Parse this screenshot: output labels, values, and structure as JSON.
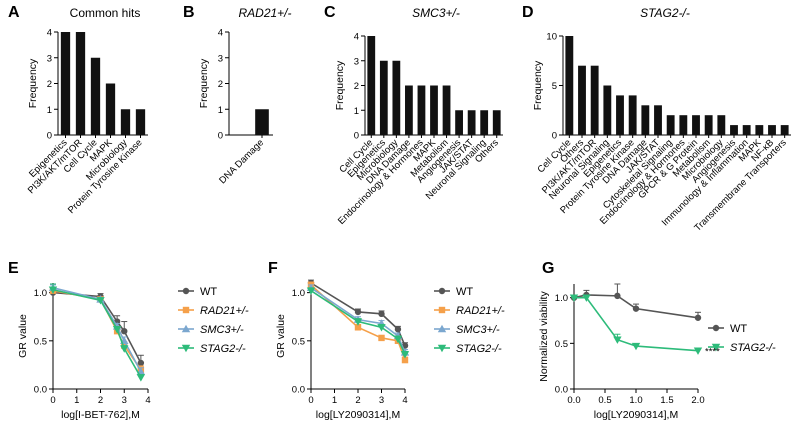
{
  "chart_data": [
    {
      "panel": "A",
      "type": "bar",
      "title": "Common hits",
      "title_italic": false,
      "xlabel": "",
      "ylabel": "Frequency",
      "ylim": [
        0,
        4
      ],
      "yticks": [
        0,
        1,
        2,
        3,
        4
      ],
      "categories": [
        "Epigenetics",
        "PI3K/AKT/mTOR",
        "Cell Cycle",
        "MAPK",
        "Microbiology",
        "Protein Tyrosine Kinase"
      ],
      "values": [
        4,
        4,
        3,
        2,
        1,
        1
      ]
    },
    {
      "panel": "B",
      "type": "bar",
      "title": "RAD21+/-",
      "title_italic": true,
      "xlabel": "",
      "ylabel": "Frequency",
      "ylim": [
        0,
        4
      ],
      "yticks": [
        0,
        1,
        2,
        3,
        4
      ],
      "categories": [
        "DNA Damage"
      ],
      "values": [
        1
      ]
    },
    {
      "panel": "C",
      "type": "bar",
      "title": "SMC3+/-",
      "title_italic": true,
      "xlabel": "",
      "ylabel": "Frequency",
      "ylim": [
        0,
        4
      ],
      "yticks": [
        0,
        1,
        2,
        3,
        4
      ],
      "categories": [
        "Cell Cycle",
        "Epigenetics",
        "Microbiology",
        "DNA Damage",
        "Endocrinology & Hormones",
        "MAPK",
        "Metabolism",
        "Angiogenesis",
        "JAK/STAT",
        "Neuronal Signaling",
        "Others"
      ],
      "values": [
        4,
        3,
        3,
        2,
        2,
        2,
        2,
        1,
        1,
        1,
        1
      ]
    },
    {
      "panel": "D",
      "type": "bar",
      "title": "STAG2-/-",
      "title_italic": true,
      "xlabel": "",
      "ylabel": "Frequency",
      "ylim": [
        0,
        10
      ],
      "yticks": [
        0,
        5,
        10
      ],
      "categories": [
        "Cell Cycle",
        "Others",
        "PI3K/AKT/mTOR",
        "Neuronal Signaling",
        "Epigenetics",
        "Protein Tyrosine Kinase",
        "DNA Damage",
        "JAK/STAT",
        "Cytoskeletal Signaling",
        "Endocrinology & Hormones",
        "GPCR & G Protein",
        "Metabolism",
        "Microbiology",
        "Angiogenesis",
        "Immunology & Inflammation",
        "MAPK",
        "NF-κB",
        "Transmembrane Transporters"
      ],
      "values": [
        10,
        7,
        7,
        5,
        4,
        4,
        3,
        3,
        2,
        2,
        2,
        2,
        2,
        1,
        1,
        1,
        1,
        1
      ]
    },
    {
      "panel": "E",
      "type": "line",
      "xlabel": "log[I-BET-762],M",
      "ylabel": "GR value",
      "xlim": [
        0,
        4
      ],
      "xticks": [
        0,
        1,
        2,
        3,
        4
      ],
      "ylim": [
        0,
        1.1
      ],
      "yticks": [
        0.0,
        0.5,
        1.0
      ],
      "x": [
        0,
        2,
        2.7,
        3,
        3.7
      ],
      "series": [
        {
          "name": "WT",
          "color": "#555555",
          "marker": "circle",
          "values": [
            1.0,
            0.96,
            0.7,
            0.6,
            0.27
          ],
          "err": [
            0.02,
            0.03,
            0.06,
            0.1,
            0.08
          ]
        },
        {
          "name": "RAD21+/-",
          "color": "#f5a04a",
          "marker": "square",
          "values": [
            1.02,
            0.93,
            0.6,
            0.45,
            0.2
          ],
          "err": [
            0.03,
            0.02,
            0.03,
            0.04,
            0.04
          ]
        },
        {
          "name": "SMC3+/-",
          "color": "#7ba7cf",
          "marker": "triangle-up",
          "values": [
            1.05,
            0.93,
            0.65,
            0.5,
            0.18
          ],
          "err": [
            0.03,
            0.02,
            0.03,
            0.04,
            0.04
          ]
        },
        {
          "name": "STAG2-/-",
          "color": "#2dbb7a",
          "marker": "triangle-down",
          "values": [
            1.03,
            0.92,
            0.62,
            0.42,
            0.12
          ],
          "err": [
            0.06,
            0.02,
            0.02,
            0.03,
            0.03
          ]
        }
      ]
    },
    {
      "panel": "F",
      "type": "line",
      "xlabel": "log[LY2090314],M",
      "ylabel": "GR value",
      "xlim": [
        0,
        4
      ],
      "xticks": [
        0,
        1,
        2,
        3,
        4
      ],
      "ylim": [
        0,
        1.1
      ],
      "yticks": [
        0.0,
        0.5,
        1.0
      ],
      "x": [
        0,
        2,
        3,
        3.7,
        4
      ],
      "series": [
        {
          "name": "WT",
          "color": "#555555",
          "marker": "circle",
          "values": [
            1.1,
            0.8,
            0.78,
            0.62,
            0.45
          ],
          "err": [
            0.03,
            0.03,
            0.03,
            0.03,
            0.03
          ]
        },
        {
          "name": "RAD21+/-",
          "color": "#f5a04a",
          "marker": "square",
          "values": [
            1.08,
            0.64,
            0.53,
            0.5,
            0.3
          ],
          "err": [
            0.03,
            0.03,
            0.02,
            0.03,
            0.03
          ]
        },
        {
          "name": "SMC3+/-",
          "color": "#7ba7cf",
          "marker": "triangle-up",
          "values": [
            1.05,
            0.72,
            0.68,
            0.55,
            0.38
          ],
          "err": [
            0.03,
            0.03,
            0.03,
            0.03,
            0.03
          ]
        },
        {
          "name": "STAG2-/-",
          "color": "#2dbb7a",
          "marker": "triangle-down",
          "values": [
            1.02,
            0.7,
            0.64,
            0.52,
            0.36
          ],
          "err": [
            0.03,
            0.03,
            0.03,
            0.03,
            0.03
          ]
        }
      ]
    },
    {
      "panel": "G",
      "type": "line",
      "xlabel": "log[LY2090314],M",
      "ylabel": "Normalized viability",
      "xlim": [
        0,
        2.0
      ],
      "xticks": [
        0.0,
        0.5,
        1.0,
        1.5,
        2.0
      ],
      "ylim": [
        0,
        1.15
      ],
      "yticks": [
        0.0,
        0.5,
        1.0
      ],
      "x": [
        0,
        0.2,
        0.7,
        1.0,
        2.0
      ],
      "series": [
        {
          "name": "WT",
          "color": "#555555",
          "marker": "circle",
          "values": [
            1.0,
            1.03,
            1.02,
            0.88,
            0.78
          ],
          "err": [
            0.02,
            0.05,
            0.13,
            0.05,
            0.06
          ]
        },
        {
          "name": "STAG2-/-",
          "color": "#2dbb7a",
          "marker": "triangle-down",
          "values": [
            1.0,
            1.0,
            0.54,
            0.47,
            0.42
          ],
          "err": [
            0.02,
            0.02,
            0.06,
            0.02,
            0.02
          ]
        }
      ],
      "annotation": "****"
    }
  ]
}
